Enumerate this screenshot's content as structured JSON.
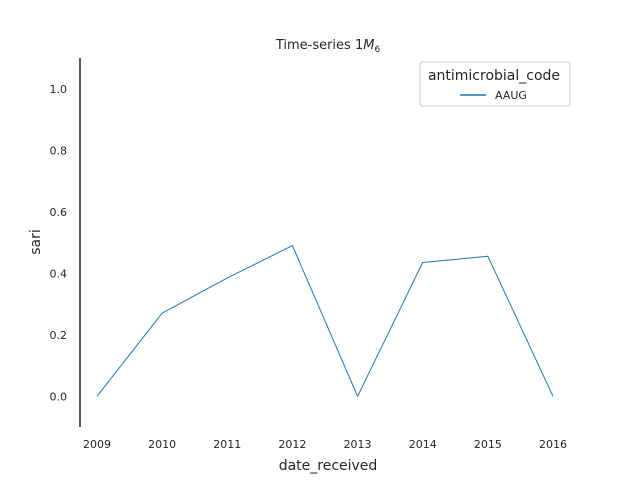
{
  "chart_data": {
    "type": "line",
    "title_prefix": "Time-series 1",
    "title_math": "M",
    "title_sub": "6",
    "xlabel": "date_received",
    "ylabel": "sari",
    "x": [
      "2009",
      "2010",
      "2011",
      "2012",
      "2013",
      "2014",
      "2015",
      "2016"
    ],
    "ylim": [
      -0.1,
      1.1
    ],
    "yticks": [
      "0.0",
      "0.2",
      "0.4",
      "0.6",
      "0.8",
      "1.0"
    ],
    "grid": false,
    "legend": {
      "title": "antimicrobial_code",
      "placement": "top-right"
    },
    "series": [
      {
        "name": "AAUG",
        "color": "#1f77b4",
        "values": [
          0.0,
          0.27,
          0.385,
          0.49,
          0.0,
          0.435,
          0.455,
          0.0
        ]
      }
    ]
  }
}
